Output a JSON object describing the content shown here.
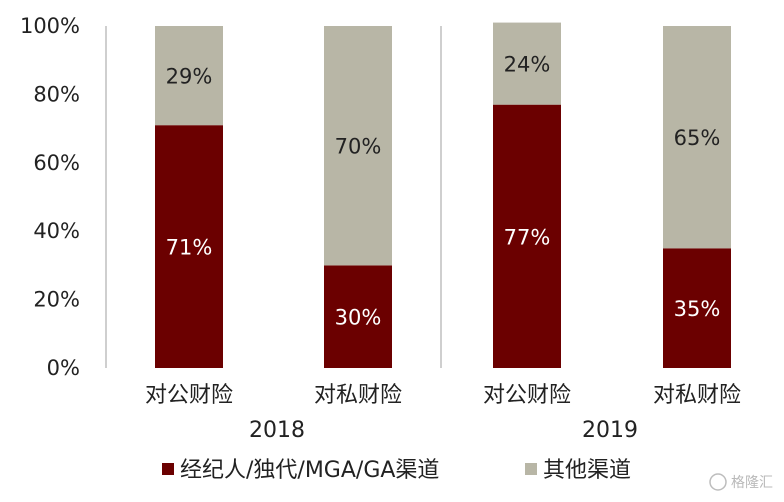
{
  "chart_data": {
    "type": "bar",
    "stacked": true,
    "ylim": [
      0,
      100
    ],
    "yticks": [
      "0%",
      "20%",
      "40%",
      "60%",
      "80%",
      "100%"
    ],
    "groups": [
      "2018",
      "2019"
    ],
    "categories": [
      "对公财险",
      "对私财险",
      "对公财险",
      "对私财险"
    ],
    "category_group": [
      0,
      0,
      1,
      1
    ],
    "series": [
      {
        "name": "经纪人/独代/MGA/GA渠道",
        "color": "#6b0000",
        "label_color": "#ffffff",
        "values": [
          71,
          30,
          77,
          35
        ],
        "labels": [
          "71%",
          "30%",
          "77%",
          "35%"
        ]
      },
      {
        "name": "其他渠道",
        "color": "#b8b6a6",
        "label_color": "#222222",
        "values": [
          29,
          70,
          24,
          65
        ],
        "labels": [
          "29%",
          "70%",
          "24%",
          "65%"
        ]
      }
    ],
    "legend_position": "bottom",
    "grid": false
  },
  "watermark": "格隆汇"
}
